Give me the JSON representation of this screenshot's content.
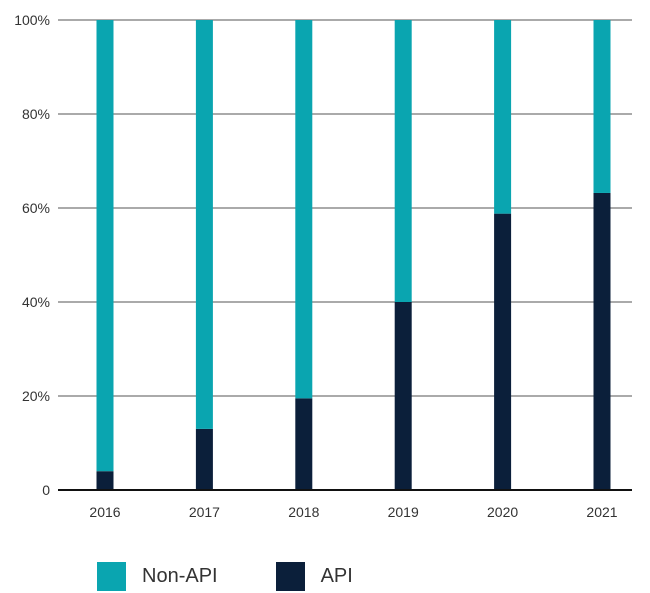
{
  "chart_data": {
    "type": "bar",
    "stacked": true,
    "categories": [
      "2016",
      "2017",
      "2018",
      "2019",
      "2020",
      "2021"
    ],
    "series": [
      {
        "name": "API",
        "color": "#0b1f3a",
        "values": [
          4,
          13,
          19.5,
          40,
          58.8,
          63.2
        ]
      },
      {
        "name": "Non-API",
        "color": "#0aa5b0",
        "values": [
          96,
          87,
          80.5,
          60,
          41.2,
          36.8
        ]
      }
    ],
    "ylim": [
      0,
      100
    ],
    "yticks": [
      0,
      20,
      40,
      60,
      80,
      100
    ],
    "ytick_labels": [
      "0",
      "20%",
      "40%",
      "60%",
      "80%",
      "100%"
    ],
    "grid": true,
    "legend_position": "bottom-left",
    "title": "",
    "xlabel": "",
    "ylabel": ""
  },
  "legend": {
    "items": [
      {
        "label": "Non-API",
        "color": "#0aa5b0"
      },
      {
        "label": "API",
        "color": "#0b1f3a"
      }
    ]
  }
}
